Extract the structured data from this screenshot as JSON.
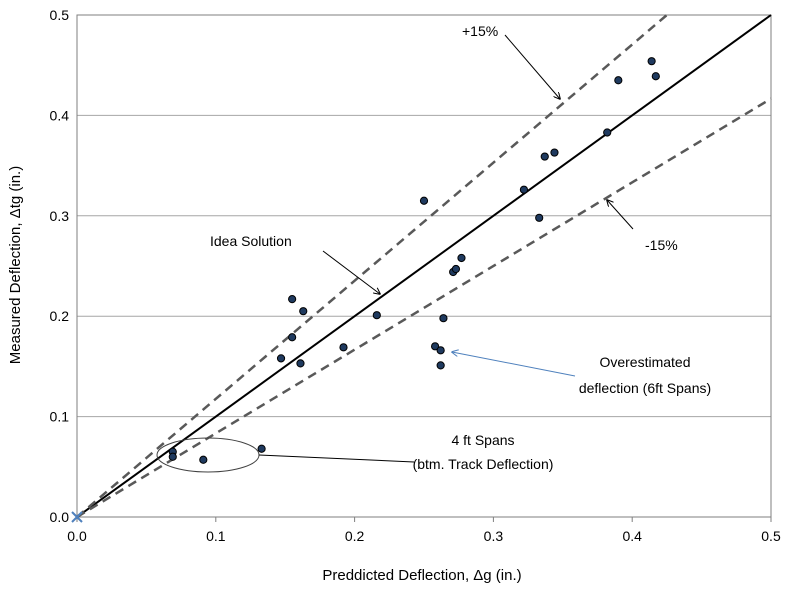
{
  "chart_data": {
    "type": "scatter",
    "title": "",
    "xlabel": "Preddicted Deflection, Δg (in.)",
    "ylabel": "Measured Deflection, Δtg (in.)",
    "xlim": [
      0,
      0.5
    ],
    "ylim": [
      0,
      0.5
    ],
    "x_ticks": [
      "0.0",
      "0.1",
      "0.2",
      "0.3",
      "0.4",
      "0.5"
    ],
    "y_ticks": [
      "0.0",
      "0.1",
      "0.2",
      "0.3",
      "0.4",
      "0.5"
    ],
    "grid": "horizontal",
    "colors": {
      "point_fill": "#1f3a5f",
      "point_stroke": "#000000",
      "ideal_line": "#000000",
      "bound_lines": "#595959",
      "grid": "#a6a6a6",
      "blue_arrow": "#4f81bd",
      "origin_marker": "#4f81bd"
    },
    "series": [
      {
        "values": [
          {
            "x": 0.069,
            "y": 0.065
          },
          {
            "x": 0.069,
            "y": 0.06
          },
          {
            "x": 0.091,
            "y": 0.057
          },
          {
            "x": 0.133,
            "y": 0.068
          },
          {
            "x": 0.147,
            "y": 0.158
          },
          {
            "x": 0.155,
            "y": 0.217
          },
          {
            "x": 0.155,
            "y": 0.179
          },
          {
            "x": 0.163,
            "y": 0.205
          },
          {
            "x": 0.161,
            "y": 0.153
          },
          {
            "x": 0.192,
            "y": 0.169
          },
          {
            "x": 0.216,
            "y": 0.201
          },
          {
            "x": 0.25,
            "y": 0.315
          },
          {
            "x": 0.258,
            "y": 0.17
          },
          {
            "x": 0.262,
            "y": 0.166
          },
          {
            "x": 0.262,
            "y": 0.151
          },
          {
            "x": 0.264,
            "y": 0.198
          },
          {
            "x": 0.271,
            "y": 0.244
          },
          {
            "x": 0.273,
            "y": 0.247
          },
          {
            "x": 0.277,
            "y": 0.258
          },
          {
            "x": 0.322,
            "y": 0.326
          },
          {
            "x": 0.333,
            "y": 0.298
          },
          {
            "x": 0.337,
            "y": 0.359
          },
          {
            "x": 0.344,
            "y": 0.363
          },
          {
            "x": 0.382,
            "y": 0.383
          },
          {
            "x": 0.39,
            "y": 0.435
          },
          {
            "x": 0.414,
            "y": 0.454
          },
          {
            "x": 0.417,
            "y": 0.439
          }
        ]
      }
    ],
    "reference_lines": [
      {
        "label": "Idea Solution",
        "slope": 1.0,
        "style": "solid"
      },
      {
        "label": "+15%",
        "slope": 1.1765,
        "style": "dashed"
      },
      {
        "label": "-15%",
        "slope": 0.8333,
        "style": "dashed"
      }
    ],
    "annotations": [
      {
        "text": "+15%"
      },
      {
        "text": "-15%"
      },
      {
        "text": "Idea Solution"
      },
      {
        "lines": [
          "Overestimated",
          "deflection (6ft Spans)"
        ]
      },
      {
        "lines": [
          "4 ft Spans",
          "(btm. Track Deflection)"
        ]
      }
    ],
    "origin_marker": "x-marker"
  }
}
